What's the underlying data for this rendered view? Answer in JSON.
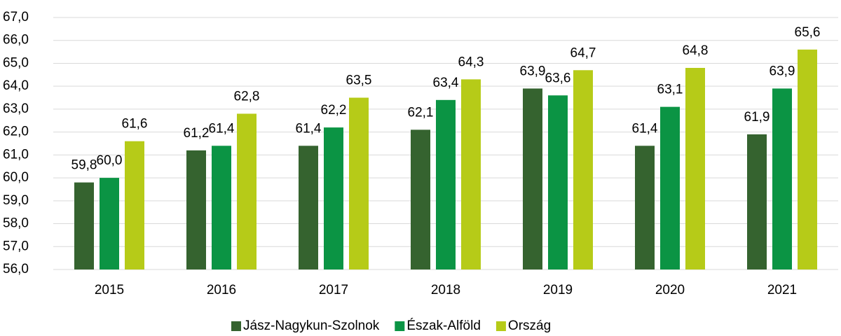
{
  "chart_data": {
    "type": "bar",
    "categories": [
      "2015",
      "2016",
      "2017",
      "2018",
      "2019",
      "2020",
      "2021"
    ],
    "series": [
      {
        "name": "Jász-Nagykun-Szolnok",
        "color": "#35632f",
        "values": [
          59.8,
          61.2,
          61.4,
          62.1,
          63.9,
          61.4,
          61.9
        ],
        "value_labels": [
          "59,8",
          "61,2",
          "61,4",
          "62,1",
          "63,9",
          "61,4",
          "61,9"
        ]
      },
      {
        "name": "Észak-Alföld",
        "color": "#0b9444",
        "values": [
          60.0,
          61.4,
          62.2,
          63.4,
          63.6,
          63.1,
          63.9
        ],
        "value_labels": [
          "60,0",
          "61,4",
          "62,2",
          "63,4",
          "63,6",
          "63,1",
          "63,9"
        ]
      },
      {
        "name": "Ország",
        "color": "#b6cb18",
        "values": [
          61.6,
          62.8,
          63.5,
          64.3,
          64.7,
          64.8,
          65.6
        ],
        "value_labels": [
          "61,6",
          "62,8",
          "63,5",
          "64,3",
          "64,7",
          "64,8",
          "65,6"
        ]
      }
    ],
    "ylim": [
      56,
      67
    ],
    "yticks": [
      {
        "value": 56,
        "label": "56,0"
      },
      {
        "value": 57,
        "label": "57,0"
      },
      {
        "value": 58,
        "label": "58,0"
      },
      {
        "value": 59,
        "label": "59,0"
      },
      {
        "value": 60,
        "label": "60,0"
      },
      {
        "value": 61,
        "label": "61,0"
      },
      {
        "value": 62,
        "label": "62,0"
      },
      {
        "value": 63,
        "label": "63,0"
      },
      {
        "value": 64,
        "label": "64,0"
      },
      {
        "value": 65,
        "label": "65,0"
      },
      {
        "value": 66,
        "label": "66,0"
      },
      {
        "value": 67,
        "label": "67,0"
      }
    ],
    "grid": true,
    "legend": "bottom"
  }
}
